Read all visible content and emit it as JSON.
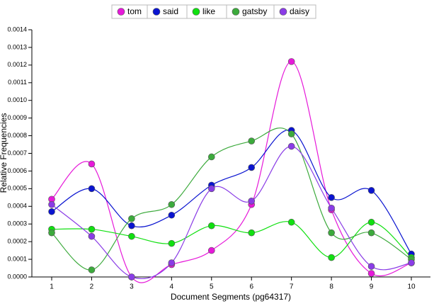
{
  "chart_data": {
    "type": "line",
    "x_label": "Document Segments (pg64317)",
    "y_label": "Relative Frequencies",
    "categories": [
      "1",
      "2",
      "3",
      "4",
      "5",
      "6",
      "7",
      "8",
      "9",
      "10"
    ],
    "series": [
      {
        "name": "tom",
        "color": "#e619d9",
        "values": [
          0.00044,
          0.00064,
          0,
          7e-05,
          0.00015,
          0.00041,
          0.00122,
          0.00038,
          2e-05,
          8e-05
        ]
      },
      {
        "name": "said",
        "color": "#0a14d0",
        "values": [
          0.00037,
          0.0005,
          0.00029,
          0.00035,
          0.00052,
          0.00062,
          0.00083,
          0.00045,
          0.00049,
          0.00013
        ]
      },
      {
        "name": "like",
        "color": "#10e010",
        "values": [
          0.00027,
          0.00027,
          0.00023,
          0.00019,
          0.00029,
          0.00025,
          0.00031,
          0.00011,
          0.00031,
          0.00011
        ]
      },
      {
        "name": "gatsby",
        "color": "#3caa3c",
        "values": [
          0.00025,
          4e-05,
          0.00033,
          0.00041,
          0.00068,
          0.00077,
          0.00081,
          0.00025,
          0.00025,
          0.0001
        ]
      },
      {
        "name": "daisy",
        "color": "#8a3ce6",
        "values": [
          0.00041,
          0.00023,
          0,
          8e-05,
          0.0005,
          0.00043,
          0.00074,
          0.00039,
          6e-05,
          8e-05
        ]
      }
    ],
    "ylim": [
      0,
      0.0014
    ],
    "yticks": [
      {
        "value": 0,
        "label": "0.0000"
      },
      0.0001,
      0.0002,
      0.0003,
      0.0004,
      0.0005,
      0.0006,
      0.0007,
      0.0008,
      0.0009,
      {
        "value": 0.001,
        "label": "0.0010"
      },
      0.0011,
      0.0012,
      0.0013,
      0.0014
    ]
  }
}
